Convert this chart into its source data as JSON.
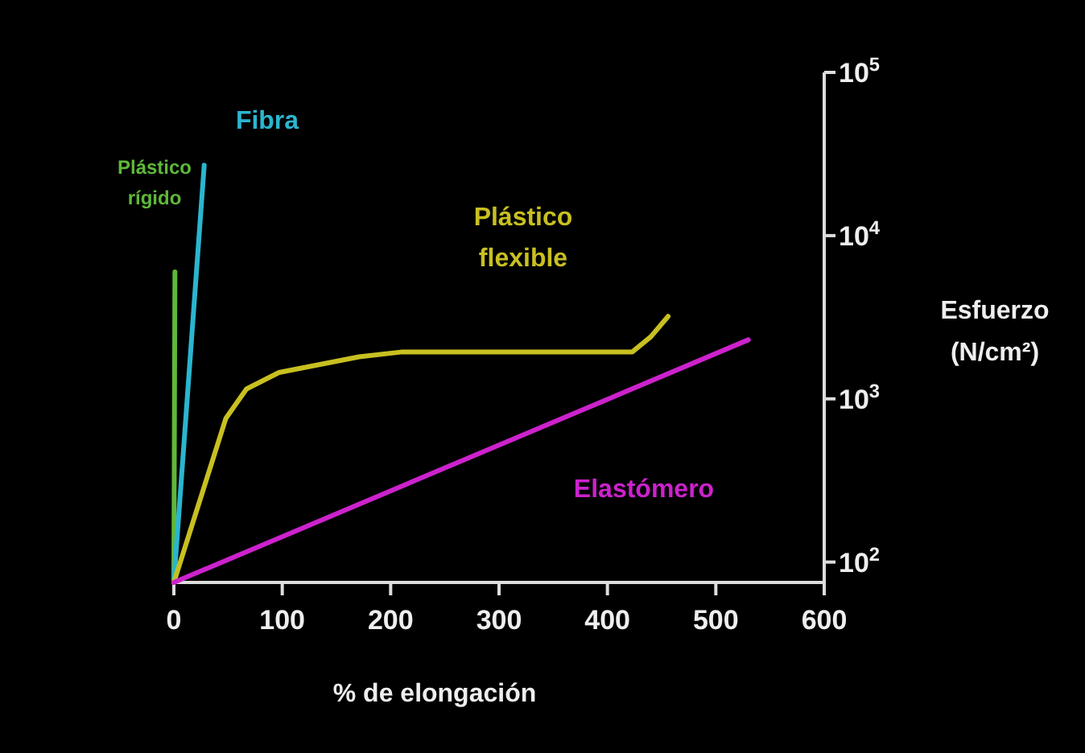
{
  "chart_data": {
    "type": "line",
    "xlabel": "% de elongación",
    "ylabel": "Esfuerzo (N/cm²)",
    "log": "y",
    "grid": false,
    "marker": "none",
    "line_style": "solid",
    "xlim": [
      0,
      600
    ],
    "xticks": [
      0,
      100,
      200,
      300,
      400,
      500,
      600
    ],
    "ylim": [
      75,
      100000
    ],
    "yticks": [
      {
        "value": 100,
        "label": "10$^{2}$"
      },
      {
        "value": 1000,
        "label": "10$^{3}$"
      },
      {
        "value": 10000,
        "label": "10$^{4}$"
      },
      {
        "value": 100000,
        "label": "10$^{5}$"
      }
    ],
    "series": [
      {
        "name": "Plástico rígido",
        "color": "#5fb83a",
        "x": [
          0,
          1
        ],
        "values": [
          75,
          6000
        ]
      },
      {
        "name": "Fibra",
        "color": "#2bb5cf",
        "x": [
          0,
          28
        ],
        "values": [
          75,
          27000
        ]
      },
      {
        "name": "Plástico flexible",
        "color": "#c8c020",
        "x": [
          0,
          48,
          67,
          97,
          171,
          211,
          423,
          440,
          456
        ],
        "values": [
          75,
          760,
          1150,
          1450,
          1810,
          1940,
          1940,
          2400,
          3200
        ]
      },
      {
        "name": "Elastómero",
        "color": "#cc22cc",
        "x": [
          0,
          530
        ],
        "values": [
          75,
          2300
        ]
      }
    ]
  }
}
